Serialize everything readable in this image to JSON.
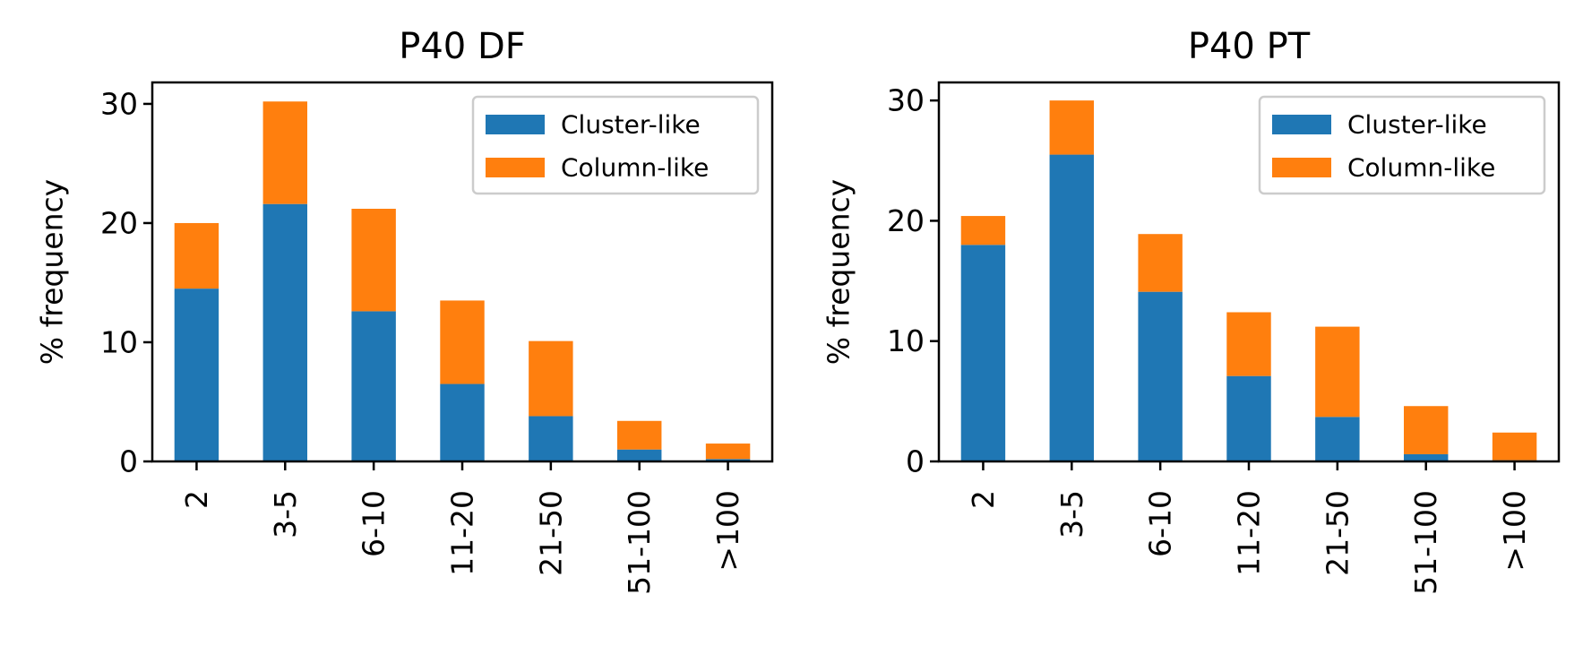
{
  "chart_data": [
    {
      "type": "bar",
      "stacked": true,
      "title": "P40 DF",
      "xlabel": "",
      "ylabel": "% frequency",
      "categories": [
        "2",
        "3-5",
        "6-10",
        "11-20",
        "21-50",
        "51-100",
        ">100"
      ],
      "series": [
        {
          "name": "Cluster-like",
          "color": "#1f77b4",
          "values": [
            14.5,
            21.6,
            12.6,
            6.5,
            3.8,
            1.0,
            0.2
          ]
        },
        {
          "name": "Column-like",
          "color": "#ff7f0e",
          "values": [
            5.5,
            8.6,
            8.6,
            7.0,
            6.3,
            2.4,
            1.3
          ]
        }
      ],
      "ylim": [
        0,
        31.8
      ],
      "yticks": [
        0,
        10,
        20,
        30
      ],
      "grid": false,
      "legend": "top-right"
    },
    {
      "type": "bar",
      "stacked": true,
      "title": "P40 PT",
      "xlabel": "",
      "ylabel": "% frequency",
      "categories": [
        "2",
        "3-5",
        "6-10",
        "11-20",
        "21-50",
        "51-100",
        ">100"
      ],
      "series": [
        {
          "name": "Cluster-like",
          "color": "#1f77b4",
          "values": [
            18.0,
            25.5,
            14.1,
            7.1,
            3.7,
            0.6,
            0.1
          ]
        },
        {
          "name": "Column-like",
          "color": "#ff7f0e",
          "values": [
            2.4,
            4.5,
            4.8,
            5.3,
            7.5,
            4.0,
            2.3
          ]
        }
      ],
      "ylim": [
        0,
        31.5
      ],
      "yticks": [
        0,
        10,
        20,
        30
      ],
      "grid": false,
      "legend": "top-right"
    }
  ]
}
